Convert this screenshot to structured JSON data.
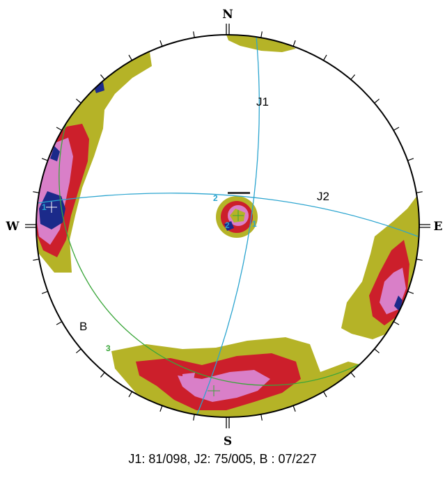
{
  "directions": {
    "north": "N",
    "south": "S",
    "east": "E",
    "west": "W"
  },
  "planes": {
    "j1": {
      "label": "J1",
      "dip": 81,
      "dip_direction": 98,
      "number": "1"
    },
    "j2": {
      "label": "J2",
      "dip": 75,
      "dip_direction": 5,
      "number": "2"
    },
    "b": {
      "label": "B",
      "dip": 7,
      "dip_direction": 227,
      "number": "3"
    }
  },
  "caption": "J1: 81/098, J2: 75/005, B  : 07/227",
  "colors": {
    "contour_olive": "#b5b327",
    "contour_red": "#cc1f2b",
    "contour_pink": "#d97fc8",
    "contour_blue": "#1b2a8a",
    "great_circle_j": "#2aa4cf",
    "great_circle_b": "#3aa63a",
    "outline": "#000000"
  }
}
